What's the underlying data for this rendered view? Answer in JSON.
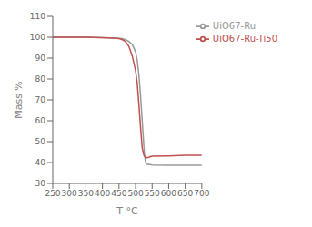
{
  "chart_data": {
    "type": "line",
    "title": "",
    "xlabel": "T °C",
    "ylabel": "Mass %",
    "xlim": [
      250,
      700
    ],
    "ylim": [
      30,
      110
    ],
    "xticks": [
      250,
      300,
      350,
      400,
      450,
      500,
      550,
      600,
      650,
      700
    ],
    "yticks": [
      30,
      40,
      50,
      60,
      70,
      80,
      90,
      100,
      110
    ],
    "grid": false,
    "legend": "upper right",
    "series": [
      {
        "name": "UiO67-Ru",
        "color": "#999999",
        "x": [
          250,
          270,
          300,
          350,
          400,
          430,
          450,
          460,
          470,
          480,
          490,
          500,
          505,
          510,
          515,
          520,
          525,
          527,
          530,
          533,
          535,
          540,
          545,
          550,
          600,
          650,
          700
        ],
        "values": [
          100.0,
          100.0,
          100.0,
          100.0,
          99.8,
          99.7,
          99.5,
          99.3,
          98.8,
          98.0,
          96.5,
          93.0,
          89.0,
          82.0,
          72.0,
          60.0,
          48.0,
          43.5,
          40.5,
          39.5,
          39.2,
          39.0,
          39.0,
          38.8,
          38.7,
          38.7,
          38.7
        ]
      },
      {
        "name": "UiO67-Ru-Ti50",
        "color": "#c0504d",
        "x": [
          250,
          270,
          300,
          350,
          400,
          430,
          450,
          455,
          460,
          465,
          470,
          475,
          480,
          490,
          500,
          505,
          510,
          515,
          520,
          525,
          530,
          535,
          540,
          545,
          550,
          600,
          650,
          700
        ],
        "values": [
          100.0,
          100.0,
          100.0,
          100.0,
          99.8,
          99.6,
          99.3,
          99.1,
          98.8,
          98.4,
          97.8,
          96.8,
          95.5,
          91.0,
          84.0,
          78.0,
          68.0,
          57.0,
          47.0,
          43.5,
          42.5,
          42.3,
          42.5,
          42.8,
          43.0,
          43.2,
          43.5,
          43.5
        ]
      }
    ]
  }
}
